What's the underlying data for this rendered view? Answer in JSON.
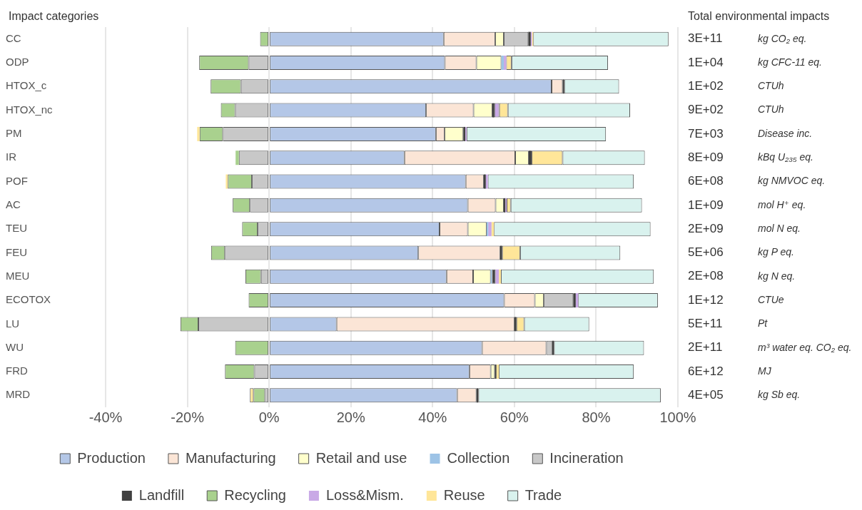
{
  "chart_data": {
    "type": "bar",
    "orientation": "horizontal",
    "stacked": true,
    "ylabel": "Impact categories",
    "categories": [
      "CC",
      "ODP",
      "HTOX_c",
      "HTOX_nc",
      "PM",
      "IR",
      "POF",
      "AC",
      "TEU",
      "FEU",
      "MEU",
      "ECOTOX",
      "LU",
      "WU",
      "FRD",
      "MRD"
    ],
    "series": [
      {
        "name": "Production",
        "color": "#b4c7e7",
        "values": [
          42.7,
          43.0,
          69.1,
          38.4,
          40.8,
          33.1,
          48.1,
          48.6,
          41.7,
          36.5,
          43.4,
          57.5,
          16.5,
          52.1,
          49.0,
          46.0
        ]
      },
      {
        "name": "Manufacturing",
        "color": "#fbe5d6",
        "values": [
          12.6,
          7.7,
          2.7,
          11.6,
          2.1,
          27.1,
          4.4,
          6.8,
          6.9,
          20.0,
          6.5,
          7.5,
          43.5,
          15.7,
          5.2,
          4.7
        ]
      },
      {
        "name": "Retail and use",
        "color": "#ffffcc",
        "values": [
          2.1,
          6.1,
          null,
          4.6,
          4.6,
          3.3,
          null,
          2.0,
          4.6,
          null,
          4.3,
          2.2,
          null,
          null,
          1.0,
          null
        ]
      },
      {
        "name": "Collection",
        "color": "#9dc3e6",
        "values": [
          null,
          0.6,
          null,
          null,
          null,
          null,
          null,
          null,
          0.4,
          null,
          0.3,
          null,
          null,
          null,
          null,
          null
        ]
      },
      {
        "name": "Incineration",
        "color": "#c8c8c8",
        "values": [
          6.0,
          -5.0,
          -6.9,
          -8.3,
          -11.3,
          -7.4,
          -4.2,
          -4.7,
          -2.8,
          -10.8,
          -2.0,
          7.2,
          -17.3,
          1.4,
          -3.6,
          -1.0
        ]
      },
      {
        "name": "Landfill",
        "color": "#404040",
        "values": [
          0.6,
          null,
          0.4,
          0.5,
          0.5,
          0.7,
          0.5,
          0.4,
          null,
          0.5,
          0.9,
          0.6,
          0.5,
          0.5,
          0.4,
          0.5
        ]
      },
      {
        "name": "Recycling",
        "color": "#a9d18e",
        "values": [
          -2.2,
          -12.1,
          -7.4,
          -3.5,
          -5.7,
          -0.8,
          -5.9,
          -4.2,
          -3.8,
          -3.4,
          -3.8,
          -5.0,
          -4.4,
          -8.3,
          -7.2,
          -2.8
        ]
      },
      {
        "name": "Loss&Mism.",
        "color": "#c9a9e6",
        "values": [
          0.3,
          0.6,
          null,
          1.2,
          0.3,
          null,
          0.5,
          0.3,
          0.8,
          null,
          0.8,
          0.6,
          null,
          null,
          null,
          null
        ]
      },
      {
        "name": "Reuse",
        "color": "#ffe699",
        "values": [
          0.3,
          1.3,
          null,
          2.1,
          -0.6,
          7.6,
          -0.5,
          1.0,
          0.6,
          4.4,
          0.5,
          null,
          1.9,
          null,
          0.6,
          -0.9
        ]
      },
      {
        "name": "Trade",
        "color": "#d9f2ee",
        "values": [
          33.1,
          23.6,
          13.4,
          29.9,
          34.1,
          20.1,
          35.7,
          32.1,
          38.3,
          24.5,
          37.4,
          19.5,
          15.9,
          22.0,
          33.0,
          44.6
        ]
      }
    ],
    "xlim": [
      -40,
      100
    ],
    "xticks": [
      {
        "value": -40,
        "label": "-40%"
      },
      {
        "value": -20,
        "label": "-20%"
      },
      {
        "value": 0,
        "label": "0%"
      },
      {
        "value": 20,
        "label": "20%"
      },
      {
        "value": 40,
        "label": "40%"
      },
      {
        "value": 60,
        "label": "60%"
      },
      {
        "value": 80,
        "label": "80%"
      },
      {
        "value": 100,
        "label": "100%"
      }
    ],
    "grid": "x",
    "legend": "bottom",
    "annotations": [
      "Total environmental impacts",
      "3E+11",
      "kg CO₂ eq.",
      "1E+04",
      "kg CFC-11 eq.",
      "1E+02",
      "CTUh",
      "9E+02",
      "CTUh",
      "7E+03",
      "Disease inc.",
      "8E+09",
      "kBq U₂₃₅ eq.",
      "6E+08",
      "kg NMVOC eq.",
      "1E+09",
      "mol H⁺ eq.",
      "2E+09",
      "mol N eq.",
      "5E+06",
      "kg P eq.",
      "2E+08",
      "kg N eq.",
      "1E+12",
      "CTUe",
      "5E+11",
      "Pt",
      "2E+11",
      "m³ water eq. CO₂ eq.",
      "6E+12",
      "MJ",
      "4E+05",
      "kg Sb eq."
    ]
  }
}
